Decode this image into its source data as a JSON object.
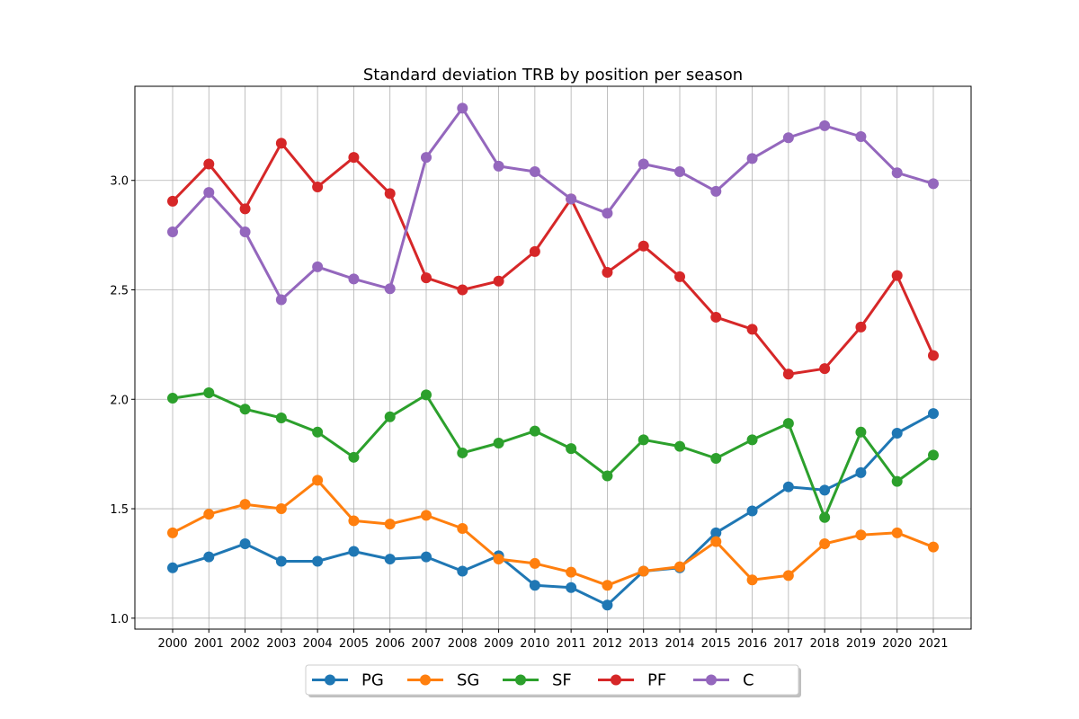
{
  "chart_data": {
    "type": "line",
    "title": "Standard deviation TRB by position per season",
    "xlabel": "",
    "ylabel": "",
    "categories": [
      "2000",
      "2001",
      "2002",
      "2003",
      "2004",
      "2005",
      "2006",
      "2007",
      "2008",
      "2009",
      "2010",
      "2011",
      "2012",
      "2013",
      "2014",
      "2015",
      "2016",
      "2017",
      "2018",
      "2019",
      "2020",
      "2021"
    ],
    "ylim": [
      0.95,
      3.43
    ],
    "yticks": [
      1.0,
      1.5,
      2.0,
      2.5,
      3.0
    ],
    "ytick_labels": [
      "1.0",
      "1.5",
      "2.0",
      "2.5",
      "3.0"
    ],
    "grid": true,
    "legend_position": "bottom-center",
    "series": [
      {
        "name": "PG",
        "color": "#1f77b4",
        "values": [
          1.23,
          1.28,
          1.34,
          1.26,
          1.26,
          1.305,
          1.27,
          1.28,
          1.215,
          1.285,
          1.15,
          1.14,
          1.06,
          1.215,
          1.23,
          1.39,
          1.49,
          1.6,
          1.585,
          1.665,
          1.845,
          1.935
        ]
      },
      {
        "name": "SG",
        "color": "#ff7f0e",
        "values": [
          1.39,
          1.475,
          1.52,
          1.5,
          1.63,
          1.445,
          1.43,
          1.47,
          1.41,
          1.27,
          1.25,
          1.21,
          1.15,
          1.215,
          1.235,
          1.35,
          1.175,
          1.195,
          1.34,
          1.38,
          1.39,
          1.325
        ]
      },
      {
        "name": "SF",
        "color": "#2ca02c",
        "values": [
          2.005,
          2.03,
          1.955,
          1.915,
          1.85,
          1.735,
          1.92,
          2.02,
          1.755,
          1.8,
          1.855,
          1.775,
          1.65,
          1.815,
          1.785,
          1.73,
          1.815,
          1.89,
          1.46,
          1.85,
          1.625,
          1.745
        ]
      },
      {
        "name": "PF",
        "color": "#d62728",
        "values": [
          2.905,
          3.075,
          2.87,
          3.17,
          2.97,
          3.105,
          2.94,
          2.555,
          2.5,
          2.54,
          2.675,
          2.915,
          2.58,
          2.7,
          2.56,
          2.375,
          2.32,
          2.115,
          2.14,
          2.33,
          2.565,
          2.2
        ]
      },
      {
        "name": "C",
        "color": "#9467bd",
        "values": [
          2.765,
          2.945,
          2.765,
          2.455,
          2.605,
          2.55,
          2.505,
          3.105,
          3.33,
          3.065,
          3.04,
          2.915,
          2.85,
          3.075,
          3.04,
          2.95,
          3.1,
          3.195,
          3.25,
          3.2,
          3.035,
          2.985
        ]
      }
    ]
  }
}
